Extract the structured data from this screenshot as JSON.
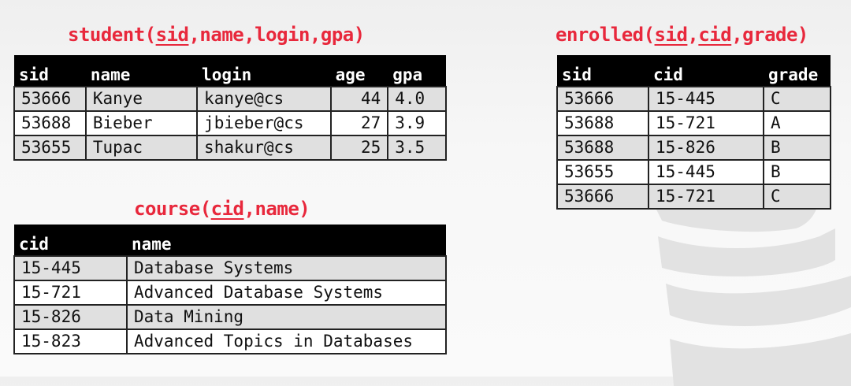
{
  "student": {
    "title_name": "student",
    "keys": [
      "sid"
    ],
    "attrs": [
      "name",
      "login",
      "gpa"
    ],
    "columns": [
      "sid",
      "name",
      "login",
      "age",
      "gpa"
    ],
    "rows": [
      [
        "53666",
        "Kanye",
        "kanye@cs",
        "44",
        "4.0"
      ],
      [
        "53688",
        "Bieber",
        "jbieber@cs",
        "27",
        "3.9"
      ],
      [
        "53655",
        "Tupac",
        "shakur@cs",
        "25",
        "3.5"
      ]
    ]
  },
  "course": {
    "title_name": "course",
    "keys": [
      "cid"
    ],
    "attrs": [
      "name"
    ],
    "columns": [
      "cid",
      "name"
    ],
    "rows": [
      [
        "15-445",
        "Database Systems"
      ],
      [
        "15-721",
        "Advanced Database Systems"
      ],
      [
        "15-826",
        "Data Mining"
      ],
      [
        "15-823",
        "Advanced Topics in Databases"
      ]
    ]
  },
  "enrolled": {
    "title_name": "enrolled",
    "keys": [
      "sid",
      "cid"
    ],
    "attrs": [
      "grade"
    ],
    "columns": [
      "sid",
      "cid",
      "grade"
    ],
    "rows": [
      [
        "53666",
        "15-445",
        "C"
      ],
      [
        "53688",
        "15-721",
        "A"
      ],
      [
        "53688",
        "15-826",
        "B"
      ],
      [
        "53655",
        "15-445",
        "B"
      ],
      [
        "53666",
        "15-721",
        "C"
      ]
    ]
  },
  "colors": {
    "title": "#e8283c",
    "header_bg": "#000000",
    "row_alt": "#e0e0e0"
  },
  "icons": {
    "background": "database-cylinder-logo"
  }
}
